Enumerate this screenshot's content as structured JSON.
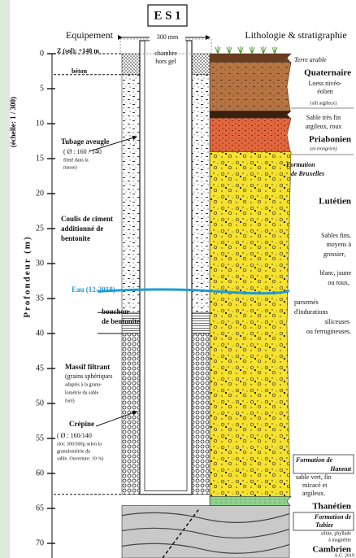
{
  "title": "E S 1",
  "header": {
    "equipment": "Equipement",
    "diameter": "300 mm",
    "lithology": "Lithologie & stratigraphie"
  },
  "axis": {
    "title": "Profondeur (m)",
    "scale": "(échelle: 1 / 300)",
    "ticks": [
      0,
      5,
      10,
      15,
      20,
      25,
      30,
      35,
      40,
      45,
      50,
      55,
      60,
      65,
      70
    ]
  },
  "equipment": {
    "elevation": "Z (sol): +148 m",
    "concrete": "béton",
    "chamber": [
      "chambre",
      "hors gel"
    ],
    "casing": {
      "title": "Tubage aveugle",
      "details": [
        "( Ø : 160 / 140",
        "fileté dans la",
        "masse)"
      ]
    },
    "grout": [
      "Coulis de ciment",
      "additionné de",
      "bentonite"
    ],
    "water": "Eau (12-2018)",
    "plug": [
      "bouchon",
      "de bentonite"
    ],
    "filter": {
      "title": "Massif filtrant",
      "details": [
        "(grains sphériques",
        "adaptés à la granu-",
        "lométrie du sable",
        "foré)"
      ]
    },
    "screen": {
      "title": "Crépine",
      "details": [
        "( Ø : 160/140",
        "slot: 300/500µ selon la",
        "granulométrie du",
        "sable. Ouverture: 10 %)"
      ]
    }
  },
  "lithology": {
    "topsoil": "Terre arable",
    "quaternary": {
      "title": "Quaternaire",
      "lines": [
        "Loess nivéo-",
        "éolien",
        "(silt argileux)",
        "Sable très fin",
        "argileux, roux"
      ]
    },
    "priabonian": {
      "title": "Priabonien",
      "note": "(ex trongrien)"
    },
    "brussels": {
      "formation": [
        "Formation",
        "de Bruxelles"
      ],
      "stage": "Lutétien",
      "lines": [
        "Sables fins,",
        "moyens à",
        "grossier,",
        "blanc, jaune",
        "ou roux,",
        "parsemés",
        "d'indurations",
        "siliceuses",
        "ou ferrugineuses."
      ]
    },
    "hannut": {
      "formation": [
        "Formation de",
        "Hannut"
      ],
      "lines": [
        "sable vert, fin",
        "micacé et",
        "argileux."
      ],
      "stage": "Thanétien"
    },
    "tubize": {
      "formation": [
        "Formation de",
        "Tubize"
      ],
      "lines": [
        "siltite, phyllade",
        "à magnétite"
      ],
      "stage": "Cambrien"
    }
  },
  "credit": "A.C. 2019"
}
